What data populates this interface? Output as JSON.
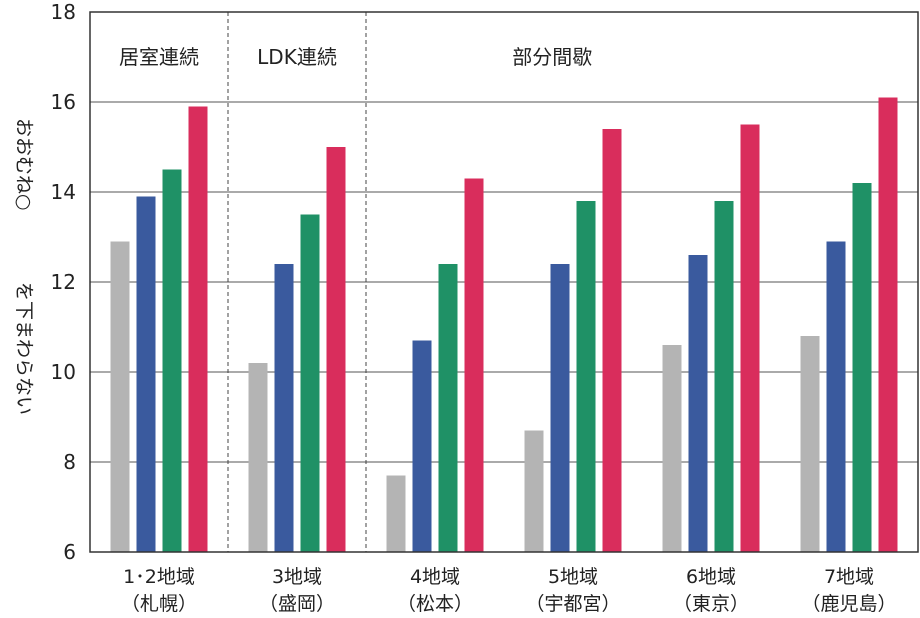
{
  "chart_data": {
    "type": "bar",
    "ylabel_top": "おおむね○",
    "ylabel_bottom": "を下まわらない",
    "ylim": [
      6,
      18
    ],
    "yticks": [
      6,
      8,
      10,
      12,
      14,
      16,
      18
    ],
    "grid": true,
    "categories": [
      {
        "line1": "1･2地域",
        "line2": "（札幌）"
      },
      {
        "line1": "3地域",
        "line2": "（盛岡）"
      },
      {
        "line1": "4地域",
        "line2": "（松本）"
      },
      {
        "line1": "5地域",
        "line2": "（宇都宮）"
      },
      {
        "line1": "6地域",
        "line2": "（東京）"
      },
      {
        "line1": "7地域",
        "line2": "（鹿児島）"
      }
    ],
    "groups": [
      {
        "label": "居室連続",
        "from": 0,
        "to": 0
      },
      {
        "label": "LDK連続",
        "from": 1,
        "to": 1
      },
      {
        "label": "部分間歇",
        "from": 2,
        "to": 5
      }
    ],
    "series": [
      {
        "color": "#b4b4b4",
        "values": [
          12.9,
          10.2,
          7.7,
          8.7,
          10.6,
          10.8
        ]
      },
      {
        "color": "#3a5a9e",
        "values": [
          13.9,
          12.4,
          10.7,
          12.4,
          12.6,
          12.9
        ]
      },
      {
        "color": "#1f9166",
        "values": [
          14.5,
          13.5,
          12.4,
          13.8,
          13.8,
          14.2
        ]
      },
      {
        "color": "#d92d5c",
        "values": [
          15.9,
          15.0,
          14.3,
          15.4,
          15.5,
          16.1
        ]
      }
    ]
  }
}
